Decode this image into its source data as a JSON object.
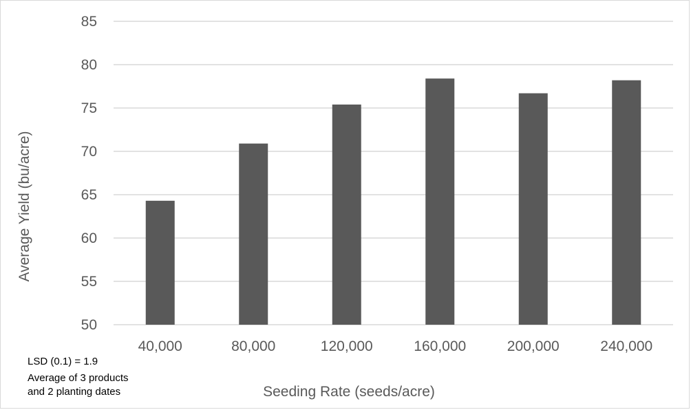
{
  "chart_data": {
    "type": "bar",
    "title": "",
    "xlabel": "Seeding Rate (seeds/acre)",
    "ylabel": "Average Yield (bu/acre)",
    "categories": [
      "40,000",
      "80,000",
      "120,000",
      "160,000",
      "200,000",
      "240,000"
    ],
    "values": [
      64.3,
      70.9,
      75.4,
      78.4,
      76.7,
      78.2
    ],
    "ylim": [
      50,
      85
    ],
    "yticks": [
      50,
      55,
      60,
      65,
      70,
      75,
      80,
      85
    ],
    "grid": true,
    "bar_color": "#595959",
    "grid_color": "#d9d9d9",
    "legend": "none"
  },
  "notes": [
    "LSD (0.1) = 1.9",
    "Average of 3 products",
    "and 2 planting dates"
  ]
}
